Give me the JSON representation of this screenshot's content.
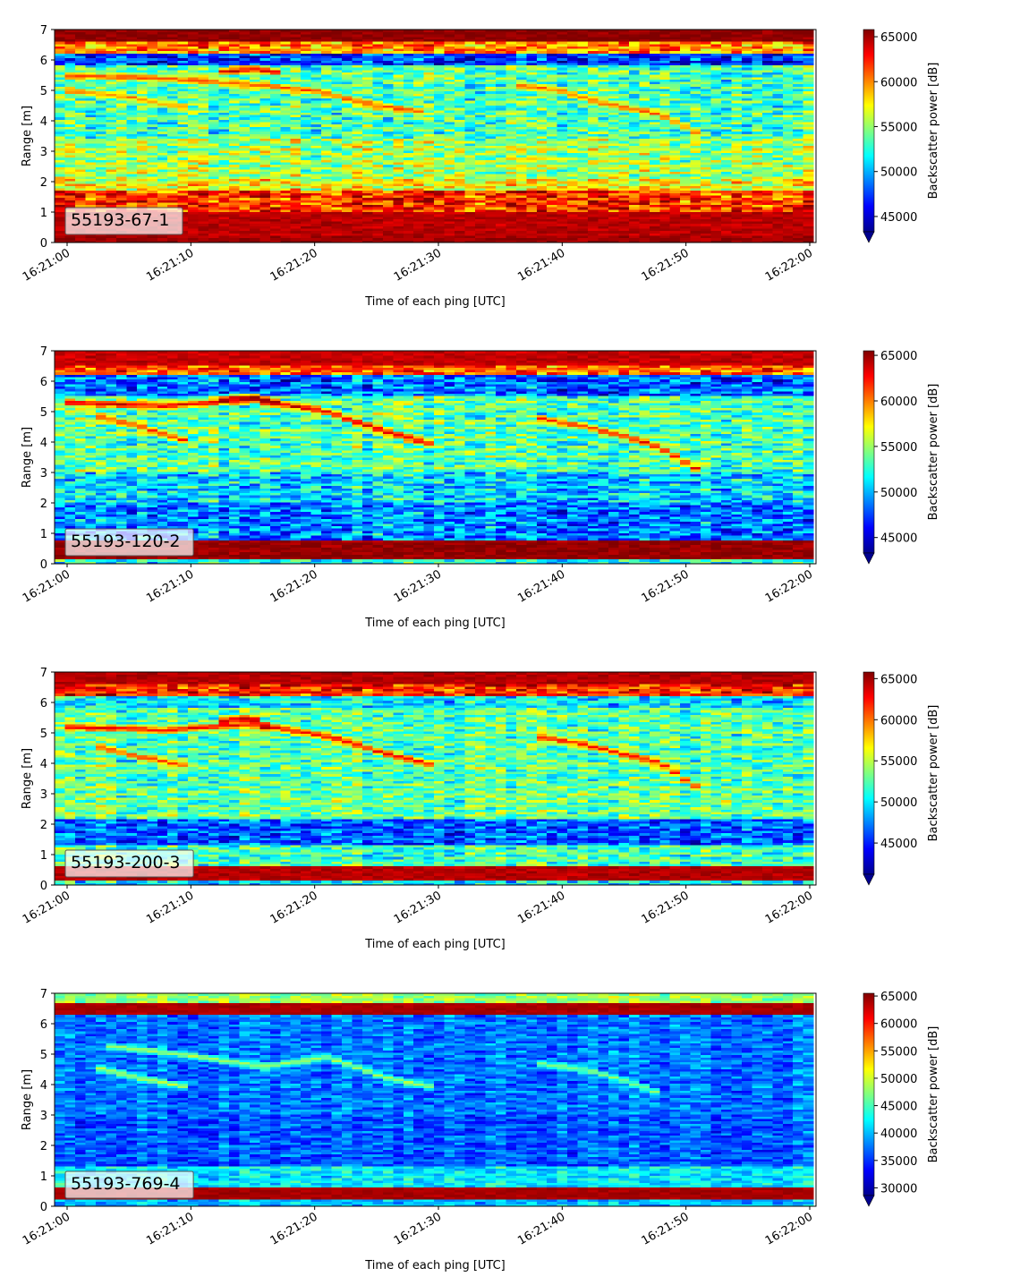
{
  "chart_data": [
    {
      "type": "heatmap",
      "label": "55193-67-1",
      "xlabel": "Time of each ping [UTC]",
      "ylabel": "Range [m]",
      "x_tick_labels": [
        "16:21:00",
        "16:21:10",
        "16:21:20",
        "16:21:30",
        "16:21:40",
        "16:21:50",
        "16:22:00"
      ],
      "x_tick_seconds": [
        0,
        10,
        20,
        30,
        40,
        50,
        60
      ],
      "x_range_seconds": [
        -1,
        60.3
      ],
      "y_ticks": [
        0,
        1,
        2,
        3,
        4,
        5,
        6,
        7
      ],
      "ylim": [
        0,
        7
      ],
      "colorbar": {
        "label": "Backscatter power [dB]",
        "ticks": [
          45000,
          50000,
          55000,
          60000,
          65000
        ],
        "range": [
          43300,
          65800
        ],
        "extend": "min",
        "colormap": "jet"
      },
      "layers": [
        {
          "range": [
            0.0,
            0.25
          ],
          "value": 65000
        },
        {
          "range": [
            0.25,
            1.0
          ],
          "value": 64500
        },
        {
          "range": [
            1.0,
            1.7
          ],
          "value": 62000
        },
        {
          "range": [
            1.7,
            2.1
          ],
          "value": 57500
        },
        {
          "range": [
            2.1,
            3.4
          ],
          "value": 55500
        },
        {
          "range": [
            3.4,
            5.8
          ],
          "value": 53500
        },
        {
          "range": [
            5.8,
            6.2
          ],
          "value": 47500
        },
        {
          "range": [
            6.2,
            6.6
          ],
          "value": 60000
        },
        {
          "range": [
            6.6,
            7.0
          ],
          "value": 65500
        }
      ],
      "echo_tracks": [
        {
          "t": [
            0,
            8,
            15,
            20,
            25,
            29
          ],
          "range": [
            5.5,
            5.4,
            5.2,
            5.0,
            4.5,
            4.3
          ],
          "value": 62000
        },
        {
          "t": [
            0,
            5,
            10
          ],
          "range": [
            5.0,
            4.8,
            4.4
          ],
          "value": 60000
        },
        {
          "t": [
            36,
            40,
            43,
            48,
            51
          ],
          "range": [
            5.2,
            5.0,
            4.6,
            4.2,
            3.6
          ],
          "value": 61000
        },
        {
          "t": [
            12,
            15,
            17
          ],
          "range": [
            5.6,
            5.7,
            5.6
          ],
          "value": 64500
        }
      ]
    },
    {
      "type": "heatmap",
      "label": "55193-120-2",
      "xlabel": "Time of each ping [UTC]",
      "ylabel": "Range [m]",
      "x_tick_labels": [
        "16:21:00",
        "16:21:10",
        "16:21:20",
        "16:21:30",
        "16:21:40",
        "16:21:50",
        "16:22:00"
      ],
      "x_tick_seconds": [
        0,
        10,
        20,
        30,
        40,
        50,
        60
      ],
      "x_range_seconds": [
        -1,
        60.3
      ],
      "y_ticks": [
        0,
        1,
        2,
        3,
        4,
        5,
        6,
        7
      ],
      "ylim": [
        0,
        7
      ],
      "colorbar": {
        "label": "Backscatter power [dB]",
        "ticks": [
          45000,
          50000,
          55000,
          60000,
          65000
        ],
        "range": [
          43300,
          65500
        ],
        "extend": "min",
        "colormap": "jet"
      },
      "layers": [
        {
          "range": [
            0.0,
            0.15
          ],
          "value": 52000
        },
        {
          "range": [
            0.15,
            0.8
          ],
          "value": 65000
        },
        {
          "range": [
            0.8,
            2.0
          ],
          "value": 49000
        },
        {
          "range": [
            2.0,
            3.0
          ],
          "value": 51000
        },
        {
          "range": [
            3.0,
            5.5
          ],
          "value": 53500
        },
        {
          "range": [
            5.5,
            6.2
          ],
          "value": 48500
        },
        {
          "range": [
            6.2,
            6.5
          ],
          "value": 61000
        },
        {
          "range": [
            6.5,
            7.0
          ],
          "value": 64000
        }
      ],
      "echo_tracks": [
        {
          "t": [
            0,
            8,
            15,
            21,
            26,
            30
          ],
          "range": [
            5.3,
            5.2,
            5.4,
            5.0,
            4.3,
            3.9
          ],
          "value": 64000
        },
        {
          "t": [
            2,
            6,
            10
          ],
          "range": [
            4.9,
            4.5,
            4.0
          ],
          "value": 62000
        },
        {
          "t": [
            38,
            42,
            46,
            48,
            51
          ],
          "range": [
            4.8,
            4.5,
            4.1,
            3.8,
            3.1
          ],
          "value": 63000
        },
        {
          "t": [
            12,
            15,
            17
          ],
          "range": [
            5.4,
            5.5,
            5.3
          ],
          "value": 65000
        }
      ]
    },
    {
      "type": "heatmap",
      "label": "55193-200-3",
      "xlabel": "Time of each ping [UTC]",
      "ylabel": "Range [m]",
      "x_tick_labels": [
        "16:21:00",
        "16:21:10",
        "16:21:20",
        "16:21:30",
        "16:21:40",
        "16:21:50",
        "16:22:00"
      ],
      "x_tick_seconds": [
        0,
        10,
        20,
        30,
        40,
        50,
        60
      ],
      "x_range_seconds": [
        -1,
        60.3
      ],
      "y_ticks": [
        0,
        1,
        2,
        3,
        4,
        5,
        6,
        7
      ],
      "ylim": [
        0,
        7
      ],
      "colorbar": {
        "label": "Backscatter power [dB]",
        "ticks": [
          45000,
          50000,
          55000,
          60000,
          65000
        ],
        "range": [
          41200,
          65800
        ],
        "extend": "min",
        "colormap": "jet"
      },
      "layers": [
        {
          "range": [
            0.0,
            0.15
          ],
          "value": 50000
        },
        {
          "range": [
            0.15,
            0.65
          ],
          "value": 64500
        },
        {
          "range": [
            0.65,
            1.3
          ],
          "value": 52000
        },
        {
          "range": [
            1.3,
            2.2
          ],
          "value": 46500
        },
        {
          "range": [
            2.2,
            3.3
          ],
          "value": 53000
        },
        {
          "range": [
            3.3,
            5.8
          ],
          "value": 52500
        },
        {
          "range": [
            5.8,
            6.2
          ],
          "value": 50000
        },
        {
          "range": [
            6.2,
            6.6
          ],
          "value": 62000
        },
        {
          "range": [
            6.6,
            7.0
          ],
          "value": 64500
        }
      ],
      "echo_tracks": [
        {
          "t": [
            0,
            8,
            15,
            21,
            26,
            30
          ],
          "range": [
            5.2,
            5.1,
            5.3,
            4.9,
            4.3,
            3.9
          ],
          "value": 63500
        },
        {
          "t": [
            2,
            6,
            10
          ],
          "range": [
            4.6,
            4.2,
            3.9
          ],
          "value": 61500
        },
        {
          "t": [
            38,
            42,
            46,
            48,
            51
          ],
          "range": [
            4.9,
            4.6,
            4.2,
            4.0,
            3.2
          ],
          "value": 63000
        },
        {
          "t": [
            12,
            15,
            16
          ],
          "range": [
            5.4,
            5.5,
            5.2
          ],
          "value": 65000
        }
      ]
    },
    {
      "type": "heatmap",
      "label": "55193-769-4",
      "xlabel": "Time of each ping [UTC]",
      "ylabel": "Range [m]",
      "x_tick_labels": [
        "16:21:00",
        "16:21:10",
        "16:21:20",
        "16:21:30",
        "16:21:40",
        "16:21:50",
        "16:22:00"
      ],
      "x_tick_seconds": [
        0,
        10,
        20,
        30,
        40,
        50,
        60
      ],
      "x_range_seconds": [
        -1,
        60.3
      ],
      "y_ticks": [
        0,
        1,
        2,
        3,
        4,
        5,
        6,
        7
      ],
      "ylim": [
        0,
        7
      ],
      "colorbar": {
        "label": "Backscatter power [dB]",
        "ticks": [
          30000,
          35000,
          40000,
          45000,
          50000,
          55000,
          60000,
          65000
        ],
        "range": [
          28600,
          65500
        ],
        "extend": "min",
        "colormap": "jet"
      },
      "layers": [
        {
          "range": [
            0.0,
            0.2
          ],
          "value": 40000
        },
        {
          "range": [
            0.2,
            0.65
          ],
          "value": 64000
        },
        {
          "range": [
            0.65,
            1.3
          ],
          "value": 42000
        },
        {
          "range": [
            1.3,
            3.0
          ],
          "value": 36500
        },
        {
          "range": [
            3.0,
            6.3
          ],
          "value": 37500
        },
        {
          "range": [
            6.3,
            6.7
          ],
          "value": 64000
        },
        {
          "range": [
            6.7,
            7.0
          ],
          "value": 48000
        }
      ],
      "echo_tracks": [
        {
          "t": [
            3,
            7,
            11,
            16,
            21,
            26,
            30
          ],
          "range": [
            5.3,
            5.1,
            4.9,
            4.6,
            4.9,
            4.2,
            3.9
          ],
          "value": 49000
        },
        {
          "t": [
            2,
            6,
            10
          ],
          "range": [
            4.6,
            4.2,
            3.9
          ],
          "value": 50000
        },
        {
          "t": [
            38,
            42,
            46,
            48
          ],
          "range": [
            4.7,
            4.5,
            4.0,
            3.7
          ],
          "value": 48000
        }
      ]
    }
  ]
}
